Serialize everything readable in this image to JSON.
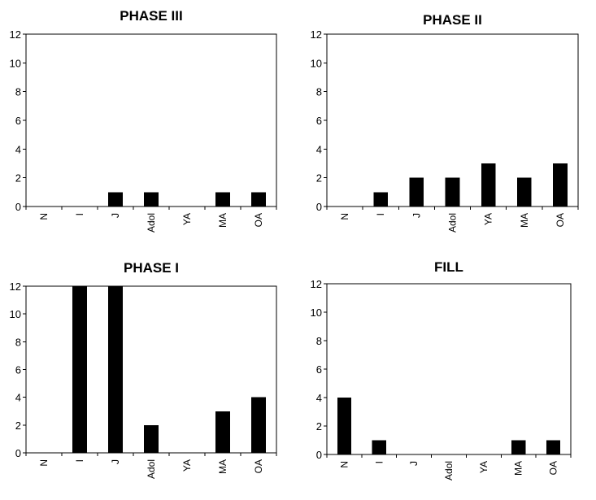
{
  "chart_data": [
    {
      "type": "bar",
      "title": "PHASE III",
      "categories": [
        "N",
        "I",
        "J",
        "Adol",
        "YA",
        "MA",
        "OA"
      ],
      "values": [
        0,
        0,
        1,
        1,
        0,
        1,
        1
      ],
      "ylim": [
        0,
        12
      ],
      "yticks": [
        0,
        2,
        4,
        6,
        8,
        10,
        12
      ],
      "xlabel": "",
      "ylabel": "",
      "bar_color": "#000000",
      "grid": false
    },
    {
      "type": "bar",
      "title": "PHASE II",
      "categories": [
        "N",
        "I",
        "J",
        "Adol",
        "YA",
        "MA",
        "OA"
      ],
      "values": [
        0,
        1,
        2,
        2,
        3,
        2,
        3
      ],
      "ylim": [
        0,
        12
      ],
      "yticks": [
        0,
        2,
        4,
        6,
        8,
        10,
        12
      ],
      "xlabel": "",
      "ylabel": "",
      "bar_color": "#000000",
      "grid": false
    },
    {
      "type": "bar",
      "title": "PHASE I",
      "categories": [
        "N",
        "I",
        "J",
        "Adol",
        "YA",
        "MA",
        "OA"
      ],
      "values": [
        0,
        12,
        12,
        2,
        0,
        3,
        4
      ],
      "ylim": [
        0,
        12
      ],
      "yticks": [
        0,
        2,
        4,
        6,
        8,
        10,
        12
      ],
      "xlabel": "",
      "ylabel": "",
      "bar_color": "#000000",
      "grid": false
    },
    {
      "type": "bar",
      "title": "FILL",
      "categories": [
        "N",
        "I",
        "J",
        "Adol",
        "YA",
        "MA",
        "OA"
      ],
      "values": [
        4,
        1,
        0,
        0,
        0,
        1,
        1
      ],
      "ylim": [
        0,
        12
      ],
      "yticks": [
        0,
        2,
        4,
        6,
        8,
        10,
        12
      ],
      "xlabel": "",
      "ylabel": "",
      "bar_color": "#000000",
      "grid": false
    }
  ]
}
